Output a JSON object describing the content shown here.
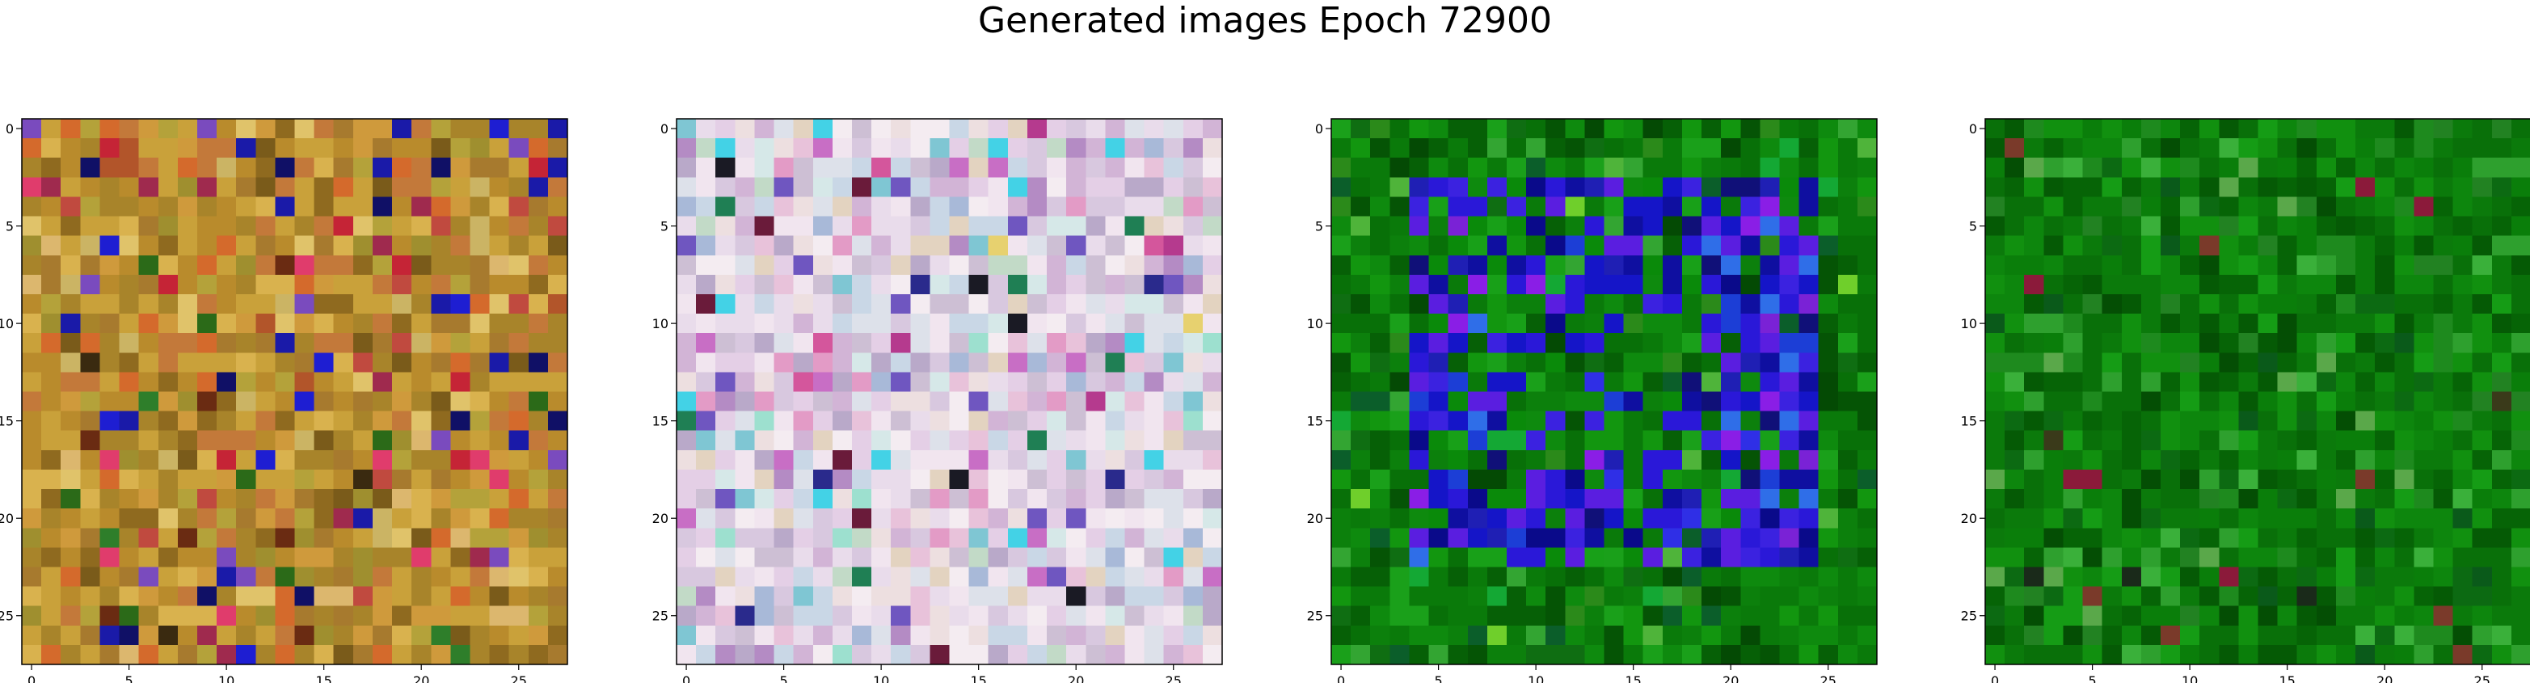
{
  "figure": {
    "title": "Generated images Epoch 72900"
  },
  "chart_data": [
    {
      "type": "heatmap",
      "grid_size": 28,
      "xticks": [
        0,
        5,
        10,
        15,
        20,
        25
      ],
      "yticks": [
        0,
        5,
        10,
        15,
        20,
        25
      ],
      "xlim": [
        -0.5,
        27.5
      ],
      "ylim": [
        27.5,
        -0.5
      ],
      "grid": false,
      "palette": [
        "#c9a13a",
        "#a8842a",
        "#b98b2c",
        "#c3793a",
        "#d9b24e",
        "#a77a2e",
        "#8f6a1f",
        "#cf9a3c",
        "#b4a23a",
        "#d46a2c",
        "#7a5b1a",
        "#cbb464",
        "#e0c36a",
        "#9f8f2f",
        "#b2552a",
        "#dcb76e",
        "#c04a3f",
        "#6a2b12",
        "#1a1aa8",
        "#7a4bbe",
        "#2b6a18",
        "#e03c6c",
        "#c52436",
        "#101066",
        "#3a2a10",
        "#2e7e2a",
        "#9f2a4e",
        "#1e1ed2"
      ],
      "weights": [
        22,
        18,
        18,
        14,
        10,
        10,
        8,
        8,
        6,
        6,
        5,
        5,
        4,
        4,
        3,
        3,
        3,
        2,
        3,
        2,
        2,
        2,
        2,
        2,
        1,
        2,
        2,
        2
      ],
      "seed": 1729
    },
    {
      "type": "heatmap",
      "grid_size": 28,
      "xticks": [
        0,
        5,
        10,
        15,
        20,
        25
      ],
      "yticks": [
        0,
        5,
        10,
        15,
        20,
        25
      ],
      "xlim": [
        -0.5,
        27.5
      ],
      "ylim": [
        27.5,
        -0.5
      ],
      "grid": false,
      "palette": [
        "#e9dceb",
        "#d8c8df",
        "#f1e5ef",
        "#cdbfd4",
        "#e4cfe6",
        "#dde1ea",
        "#f4ecf1",
        "#d2b4d6",
        "#c9d7e6",
        "#e8c2da",
        "#b9a9c9",
        "#eddfe0",
        "#d6e8e8",
        "#c2dac7",
        "#e3d3c0",
        "#e39bc6",
        "#b48bc4",
        "#a8b9d8",
        "#7fc6d3",
        "#9de0cf",
        "#c86ec5",
        "#d4569c",
        "#6f56c0",
        "#43d2e6",
        "#2a2a8c",
        "#6a1b3a",
        "#b53a8e",
        "#1f7f54",
        "#e7d16f",
        "#1a1a24"
      ],
      "weights": [
        16,
        14,
        14,
        12,
        12,
        10,
        10,
        8,
        8,
        8,
        6,
        6,
        5,
        5,
        4,
        4,
        4,
        4,
        3,
        3,
        3,
        2,
        2,
        2,
        1,
        1,
        1,
        1,
        1,
        1
      ],
      "seed": 4242
    },
    {
      "type": "heatmap",
      "grid_size": 28,
      "xticks": [
        0,
        5,
        10,
        15,
        20,
        25
      ],
      "yticks": [
        0,
        5,
        10,
        15,
        20,
        25
      ],
      "xlim": [
        -0.5,
        27.5
      ],
      "ylim": [
        27.5,
        -0.5
      ],
      "grid": false,
      "palette": [
        "#0a7a0a",
        "#087008",
        "#0e8a0e",
        "#066006",
        "#12960f",
        "#0c800c",
        "#055405",
        "#1aa01a",
        "#0f6e12",
        "#2b8a1a",
        "#33a532",
        "#044a04",
        "#4fb43a",
        "#6fcf2b",
        "#0b5e2a",
        "#14a834"
      ],
      "weights": [
        18,
        16,
        14,
        12,
        10,
        10,
        8,
        6,
        6,
        4,
        4,
        4,
        3,
        2,
        3,
        3
      ],
      "ring_palette": [
        "#1515c8",
        "#2a18d8",
        "#0f0fa0",
        "#3b22e0",
        "#5a1ee0",
        "#1c3ed6",
        "#0a0a8a",
        "#2f6ee8",
        "#0a8a0a",
        "#18a018",
        "#8a1ee6",
        "#101078",
        "#1f1fb4",
        "#7a22d6",
        "#2f2fe6"
      ],
      "ring_weights": [
        14,
        12,
        10,
        10,
        8,
        6,
        6,
        5,
        6,
        5,
        5,
        4,
        4,
        3,
        3
      ],
      "ring": {
        "outer": [
          4,
          3,
          24,
          22
        ],
        "inner": [
          9,
          9,
          19,
          18
        ]
      },
      "seed": 9090
    },
    {
      "type": "heatmap",
      "grid_size": 28,
      "xticks": [
        0,
        5,
        10,
        15,
        20,
        25
      ],
      "yticks": [
        0,
        5,
        10,
        15,
        20,
        25
      ],
      "xlim": [
        -0.5,
        27.5
      ],
      "ylim": [
        27.5,
        -0.5
      ],
      "grid": false,
      "palette": [
        "#0b7a0b",
        "#097009",
        "#0d860d",
        "#066406",
        "#11900f",
        "#0a7e0a",
        "#055a05",
        "#159c15",
        "#0c6a12",
        "#1e8a1e",
        "#2ea02e",
        "#044e04",
        "#3ab03a",
        "#0a5a1a",
        "#228222",
        "#5aa84a",
        "#7a3a2a",
        "#8b1a3a",
        "#3a3a1a",
        "#1a2a1a"
      ],
      "weights": [
        18,
        16,
        14,
        12,
        10,
        10,
        8,
        6,
        6,
        5,
        4,
        4,
        3,
        3,
        3,
        2,
        1,
        1,
        1,
        1
      ],
      "seed": 7777
    }
  ]
}
